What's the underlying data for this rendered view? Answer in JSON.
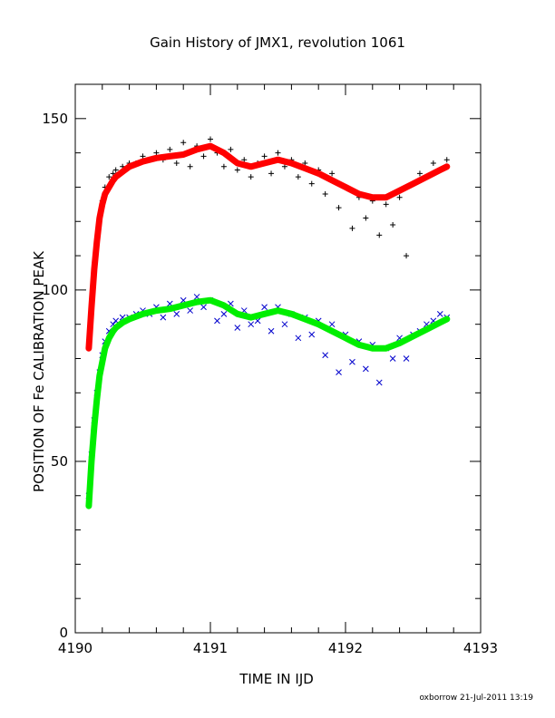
{
  "chart_data": {
    "type": "scatter",
    "title": "Gain History of JMX1, revolution 1061",
    "xlabel": "TIME IN IJD",
    "ylabel": "POSITION OF Fe CALIBRATION PEAK",
    "xlim": [
      4190,
      4193
    ],
    "ylim": [
      0,
      160
    ],
    "x_ticks": [
      "4190",
      "4191",
      "4192",
      "4193"
    ],
    "y_ticks": [
      "0",
      "50",
      "100",
      "150"
    ],
    "grid": false,
    "legend": "none",
    "footer": "oxborrow 21-Jul-2011 13:19",
    "series": [
      {
        "marker": "plus",
        "color": "#000000",
        "x": [
          4190.1,
          4190.12,
          4190.14,
          4190.16,
          4190.18,
          4190.2,
          4190.22,
          4190.25,
          4190.28,
          4190.3,
          4190.35,
          4190.4,
          4190.45,
          4190.5,
          4190.55,
          4190.6,
          4190.65,
          4190.7,
          4190.75,
          4190.8,
          4190.85,
          4190.9,
          4190.95,
          4191.0,
          4191.05,
          4191.1,
          4191.15,
          4191.2,
          4191.25,
          4191.3,
          4191.35,
          4191.4,
          4191.45,
          4191.5,
          4191.55,
          4191.6,
          4191.65,
          4191.7,
          4191.75,
          4191.8,
          4191.85,
          4191.9,
          4191.95,
          4192.0,
          4192.05,
          4192.1,
          4192.15,
          4192.2,
          4192.25,
          4192.3,
          4192.35,
          4192.4,
          4192.45,
          4192.5,
          4192.55,
          4192.6,
          4192.65,
          4192.7,
          4192.75
        ],
        "y": [
          83,
          95,
          106,
          114,
          121,
          126,
          130,
          133,
          134,
          135,
          136,
          137,
          137,
          139,
          138,
          140,
          138,
          141,
          137,
          143,
          136,
          142,
          139,
          144,
          140,
          136,
          141,
          135,
          138,
          133,
          137,
          139,
          134,
          140,
          136,
          138,
          133,
          137,
          131,
          135,
          128,
          134,
          124,
          130,
          118,
          127,
          121,
          126,
          116,
          125,
          119,
          127,
          110,
          131,
          134,
          133,
          137,
          135,
          138
        ]
      },
      {
        "marker": "cross",
        "color": "#0000cc",
        "x": [
          4190.1,
          4190.12,
          4190.14,
          4190.16,
          4190.18,
          4190.2,
          4190.22,
          4190.25,
          4190.28,
          4190.3,
          4190.35,
          4190.4,
          4190.45,
          4190.5,
          4190.55,
          4190.6,
          4190.65,
          4190.7,
          4190.75,
          4190.8,
          4190.85,
          4190.9,
          4190.95,
          4191.0,
          4191.05,
          4191.1,
          4191.15,
          4191.2,
          4191.25,
          4191.3,
          4191.35,
          4191.4,
          4191.45,
          4191.5,
          4191.55,
          4191.6,
          4191.65,
          4191.7,
          4191.75,
          4191.8,
          4191.85,
          4191.9,
          4191.95,
          4192.0,
          4192.05,
          4192.1,
          4192.15,
          4192.2,
          4192.25,
          4192.3,
          4192.35,
          4192.4,
          4192.45,
          4192.5,
          4192.55,
          4192.6,
          4192.65,
          4192.7,
          4192.75
        ],
        "y": [
          40,
          52,
          62,
          70,
          76,
          81,
          85,
          88,
          90,
          91,
          92,
          92,
          93,
          94,
          93,
          95,
          92,
          96,
          93,
          97,
          94,
          98,
          95,
          97,
          91,
          93,
          96,
          89,
          94,
          90,
          91,
          95,
          88,
          95,
          90,
          93,
          86,
          92,
          87,
          91,
          81,
          90,
          76,
          87,
          79,
          85,
          77,
          84,
          73,
          83,
          80,
          86,
          80,
          87,
          88,
          90,
          91,
          93,
          92
        ]
      },
      {
        "marker": "fit",
        "color": "#ff0000",
        "x": [
          4190.1,
          4190.12,
          4190.14,
          4190.16,
          4190.18,
          4190.2,
          4190.22,
          4190.25,
          4190.28,
          4190.3,
          4190.35,
          4190.4,
          4190.5,
          4190.6,
          4190.7,
          4190.8,
          4190.9,
          4191.0,
          4191.1,
          4191.2,
          4191.3,
          4191.4,
          4191.5,
          4191.6,
          4191.7,
          4191.8,
          4191.9,
          4192.0,
          4192.1,
          4192.2,
          4192.3,
          4192.4,
          4192.5,
          4192.6,
          4192.7,
          4192.75
        ],
        "y": [
          83,
          95,
          106,
          114,
          121,
          125,
          128,
          130,
          132,
          133,
          134.5,
          136,
          137.5,
          138.5,
          139,
          139.5,
          141,
          142,
          140,
          137,
          136,
          137,
          138,
          137,
          135.5,
          134,
          132,
          130,
          128,
          127,
          127,
          129,
          131,
          133,
          135,
          136
        ]
      },
      {
        "marker": "fit",
        "color": "#00ee00",
        "x": [
          4190.1,
          4190.12,
          4190.14,
          4190.16,
          4190.18,
          4190.2,
          4190.22,
          4190.25,
          4190.28,
          4190.3,
          4190.35,
          4190.4,
          4190.5,
          4190.6,
          4190.7,
          4190.8,
          4190.9,
          4191.0,
          4191.1,
          4191.2,
          4191.3,
          4191.4,
          4191.5,
          4191.6,
          4191.7,
          4191.8,
          4191.9,
          4192.0,
          4192.1,
          4192.2,
          4192.3,
          4192.4,
          4192.5,
          4192.6,
          4192.7,
          4192.75
        ],
        "y": [
          37,
          50,
          60,
          68,
          75,
          79,
          83,
          86,
          88,
          89,
          90.5,
          91.5,
          93,
          94,
          94.5,
          95.5,
          96.5,
          97,
          95.5,
          93,
          92,
          93,
          94,
          93,
          91.5,
          90,
          88,
          86,
          84,
          83,
          83,
          84.5,
          86.5,
          88.5,
          90.5,
          91.5
        ]
      }
    ]
  }
}
